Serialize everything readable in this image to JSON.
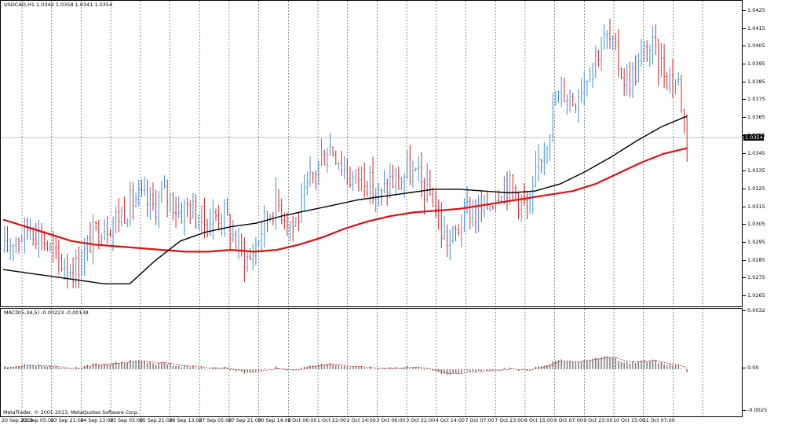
{
  "chart": {
    "symbol_header": "USDCAD,H1  1.0342 1.0358 1.0341 1.0354",
    "current_price": "1.0354",
    "macd_header": "MACD(5,34,5) -0.00223 -0.00138",
    "copyright": "MetaTrader, © 2001-2013, MetaQuotes Software Corp.",
    "price_axis_labels": [
      "1.0425",
      "1.0415",
      "1.0405",
      "1.0395",
      "1.0385",
      "1.0375",
      "1.0365",
      "1.0355",
      "1.0345",
      "1.0335",
      "1.0325",
      "1.0315",
      "1.0305",
      "1.0295",
      "1.0285",
      "1.0275",
      "1.0265"
    ],
    "macd_axis_labels": [
      "0.0032",
      "0.00",
      "-0.0025"
    ],
    "time_labels": [
      "20 Sep 2013",
      "23 Sep 05:00",
      "23 Sep 21:00",
      "24 Sep 13:00",
      "25 Sep 05:00",
      "25 Sep 21:00",
      "26 Sep 13:00",
      "27 Sep 05:00",
      "27 Sep 21:00",
      "30 Sep 14:00",
      "1 Oct 06:00",
      "1 Oct 22:00",
      "2 Oct 14:00",
      "3 Oct 06:00",
      "3 Oct 22:00",
      "4 Oct 14:00",
      "7 Oct 07:00",
      "7 Oct 23:00",
      "8 Oct 15:00",
      "9 Oct 07:00",
      "9 Oct 23:00",
      "10 Oct 15:00",
      "11 Oct 07:00"
    ],
    "colors": {
      "bull": "#3d8fe0",
      "bear": "#e02020",
      "ma_fast": "#e01010",
      "ma_slow": "#000000",
      "macd_hist": "#808080",
      "macd_signal": "#e01010",
      "grid": "#000000"
    }
  },
  "chart_data": {
    "type": "line",
    "ylim": [
      1.0262,
      1.0428
    ],
    "price_path": [
      1.029,
      1.0298,
      1.03,
      1.0305,
      1.03,
      1.0293,
      1.0285,
      1.0283,
      1.028,
      1.0288,
      1.0298,
      1.0305,
      1.0306,
      1.031,
      1.0315,
      1.032,
      1.0318,
      1.0315,
      1.0322,
      1.032,
      1.0312,
      1.0316,
      1.031,
      1.0306,
      1.031,
      1.0312,
      1.03,
      1.029,
      1.0285,
      1.0298,
      1.031,
      1.0318,
      1.0312,
      1.0305,
      1.0315,
      1.033,
      1.034,
      1.035,
      1.0345,
      1.0335,
      1.033,
      1.0335,
      1.0325,
      1.032,
      1.033,
      1.0328,
      1.0335,
      1.0332,
      1.0325,
      1.032,
      1.03,
      1.0295,
      1.0305,
      1.0315,
      1.031,
      1.0315,
      1.0322,
      1.033,
      1.0325,
      1.032,
      1.031,
      1.034,
      1.0355,
      1.0375,
      1.038,
      1.0375,
      1.0385,
      1.0395,
      1.0405,
      1.041,
      1.0398,
      1.0385,
      1.039,
      1.04,
      1.0405,
      1.0395,
      1.0388,
      1.0385,
      1.0354
    ],
    "series": [
      {
        "values": [
          1.0308,
          1.0304,
          1.03,
          1.0296,
          1.0294,
          1.0293,
          1.0292,
          1.0291,
          1.029,
          1.029,
          1.0291,
          1.029,
          1.0291,
          1.0294,
          1.0298,
          1.0303,
          1.0307,
          1.031,
          1.0312,
          1.0313,
          1.0314,
          1.0316,
          1.0318,
          1.032,
          1.0322,
          1.0324,
          1.0328,
          1.0334,
          1.034,
          1.0345,
          1.0348
        ]
      },
      {
        "values": [
          1.028,
          1.0278,
          1.0276,
          1.0274,
          1.0272,
          1.0272,
          1.0285,
          1.0296,
          1.0301,
          1.0304,
          1.0306,
          1.031,
          1.0313,
          1.0316,
          1.0319,
          1.0321,
          1.0323,
          1.0325,
          1.0325,
          1.0324,
          1.0323,
          1.0324,
          1.0328,
          1.0335,
          1.0343,
          1.0352,
          1.036,
          1.0366
        ]
      }
    ]
  }
}
